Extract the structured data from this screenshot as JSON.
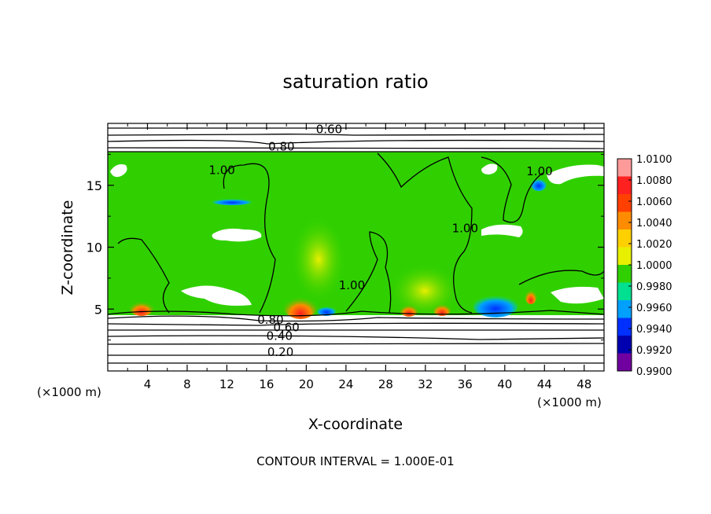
{
  "chart_data": {
    "type": "heatmap",
    "title": "saturation ratio",
    "xlabel": "X-coordinate",
    "ylabel": "Z-coordinate",
    "x_unit": "(×1000 m)",
    "x_unit_right": "(×1000 m)",
    "xlim": [
      0,
      50
    ],
    "ylim": [
      0,
      20
    ],
    "x_ticks": [
      "4",
      "8",
      "12",
      "16",
      "20",
      "24",
      "28",
      "32",
      "36",
      "40",
      "44",
      "48"
    ],
    "x_tick_values": [
      4,
      8,
      12,
      16,
      20,
      24,
      28,
      32,
      36,
      40,
      44,
      48
    ],
    "y_ticks": [
      "5",
      "10",
      "15"
    ],
    "y_tick_values": [
      5,
      10,
      15
    ],
    "footer": "CONTOUR INTERVAL = 1.000E-01",
    "colorbar": {
      "labels": [
        "1.0100",
        "1.0080",
        "1.0060",
        "1.0040",
        "1.0020",
        "1.0000",
        "0.9980",
        "0.9960",
        "0.9940",
        "0.9920",
        "0.9900"
      ],
      "colors": [
        "#ff9a9a",
        "#ff2020",
        "#ff4000",
        "#ff8c00",
        "#ffd000",
        "#e8f000",
        "#30d000",
        "#00e090",
        "#00a0ff",
        "#0030ff",
        "#0000b0",
        "#7000a0"
      ]
    },
    "contour_labels": [
      {
        "text": "0.60",
        "x": 22.3,
        "z": 19.6
      },
      {
        "text": "0.80",
        "x": 17.5,
        "z": 18.2
      },
      {
        "text": "1.00",
        "x": 11.5,
        "z": 16.3
      },
      {
        "text": "1.00",
        "x": 43.5,
        "z": 16.2
      },
      {
        "text": "1.00",
        "x": 36.0,
        "z": 11.6
      },
      {
        "text": "1.00",
        "x": 24.6,
        "z": 7.0
      },
      {
        "text": "0.80",
        "x": 16.4,
        "z": 4.2
      },
      {
        "text": "0.60",
        "x": 18.0,
        "z": 3.6
      },
      {
        "text": "0.40",
        "x": 17.3,
        "z": 2.9
      },
      {
        "text": "0.20",
        "x": 17.4,
        "z": 1.6
      }
    ],
    "grid": false,
    "legend": "colorbar-right"
  }
}
